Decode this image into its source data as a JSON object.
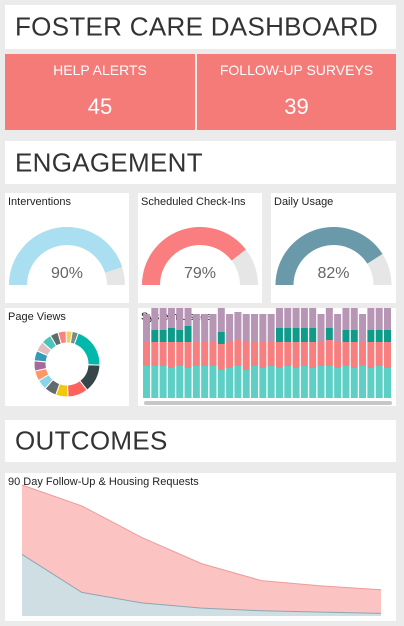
{
  "dashboard": {
    "title": "FOSTER CARE DASHBOARD"
  },
  "alerts": {
    "help": {
      "label": "HELP ALERTS",
      "value": "45"
    },
    "followup": {
      "label": "FOLLOW-UP SURVEYS",
      "value": "39"
    }
  },
  "sections": {
    "engagement": "ENGAGEMENT",
    "outcomes": "OUTCOMES"
  },
  "gauges": [
    {
      "title": "Interventions",
      "value": 90,
      "label": "90%",
      "color": "#a9dff0"
    },
    {
      "title": "Scheduled Check-Ins",
      "value": 79,
      "label": "79%",
      "color": "#fa7e7f"
    },
    {
      "title": "Daily Usage",
      "value": 82,
      "label": "82%",
      "color": "#6a9aaa"
    }
  ],
  "page_views": {
    "title": "Page Views",
    "slices": [
      {
        "value": 20,
        "color": "#01b8aa"
      },
      {
        "value": 14,
        "color": "#374649"
      },
      {
        "value": 10,
        "color": "#fd625e"
      },
      {
        "value": 6,
        "color": "#f2c80f"
      },
      {
        "value": 6,
        "color": "#5f6b6d"
      },
      {
        "value": 5,
        "color": "#8ad4eb"
      },
      {
        "value": 5,
        "color": "#fe9666"
      },
      {
        "value": 5,
        "color": "#a66999"
      },
      {
        "value": 5,
        "color": "#3599b8"
      },
      {
        "value": 5,
        "color": "#dfbfbf"
      },
      {
        "value": 5,
        "color": "#4ac5bb"
      },
      {
        "value": 4,
        "color": "#5f6b6d"
      },
      {
        "value": 4,
        "color": "#fb8281"
      },
      {
        "value": 3,
        "color": "#f4d25a"
      },
      {
        "value": 3,
        "color": "#7f898a"
      }
    ]
  },
  "system_usage": {
    "title": "System Usage",
    "colors": {
      "a": "#5ecfc5",
      "b": "#f77f7f",
      "c": "#0f9b8a",
      "d": "#b795b5"
    },
    "bars": [
      [
        16,
        12,
        0,
        14
      ],
      [
        16,
        12,
        6,
        14
      ],
      [
        16,
        12,
        6,
        14
      ],
      [
        15,
        13,
        7,
        14
      ],
      [
        16,
        12,
        6,
        14
      ],
      [
        15,
        13,
        8,
        14
      ],
      [
        16,
        12,
        0,
        14
      ],
      [
        16,
        12,
        0,
        14
      ],
      [
        16,
        12,
        0,
        14
      ],
      [
        14,
        13,
        6,
        14
      ],
      [
        15,
        13,
        0,
        14
      ],
      [
        16,
        13,
        0,
        14
      ],
      [
        14,
        14,
        0,
        14
      ],
      [
        16,
        12,
        0,
        14
      ],
      [
        15,
        13,
        0,
        14
      ],
      [
        16,
        12,
        0,
        14
      ],
      [
        15,
        13,
        7,
        14
      ],
      [
        16,
        12,
        7,
        14
      ],
      [
        15,
        13,
        7,
        14
      ],
      [
        16,
        12,
        7,
        14
      ],
      [
        15,
        13,
        7,
        14
      ],
      [
        16,
        12,
        0,
        14
      ],
      [
        16,
        13,
        6,
        14
      ],
      [
        15,
        13,
        0,
        14
      ],
      [
        16,
        12,
        6,
        14
      ],
      [
        15,
        13,
        6,
        14
      ],
      [
        16,
        12,
        0,
        14
      ],
      [
        15,
        13,
        6,
        14
      ],
      [
        16,
        12,
        6,
        14
      ],
      [
        15,
        13,
        6,
        14
      ]
    ]
  },
  "outcomes_chart": {
    "title": "90 Day Follow-Up & Housing Requests",
    "chart_data": {
      "type": "area",
      "x": [
        1,
        2,
        3,
        4,
        5,
        6,
        7
      ],
      "series": [
        {
          "values": [
            100,
            84,
            60,
            40,
            27,
            23,
            20
          ],
          "color": "#fcc3c3"
        },
        {
          "values": [
            47,
            18,
            10,
            6,
            4,
            3,
            2
          ],
          "color": "#cfdee3"
        }
      ],
      "ylim": [
        0,
        100
      ]
    }
  }
}
